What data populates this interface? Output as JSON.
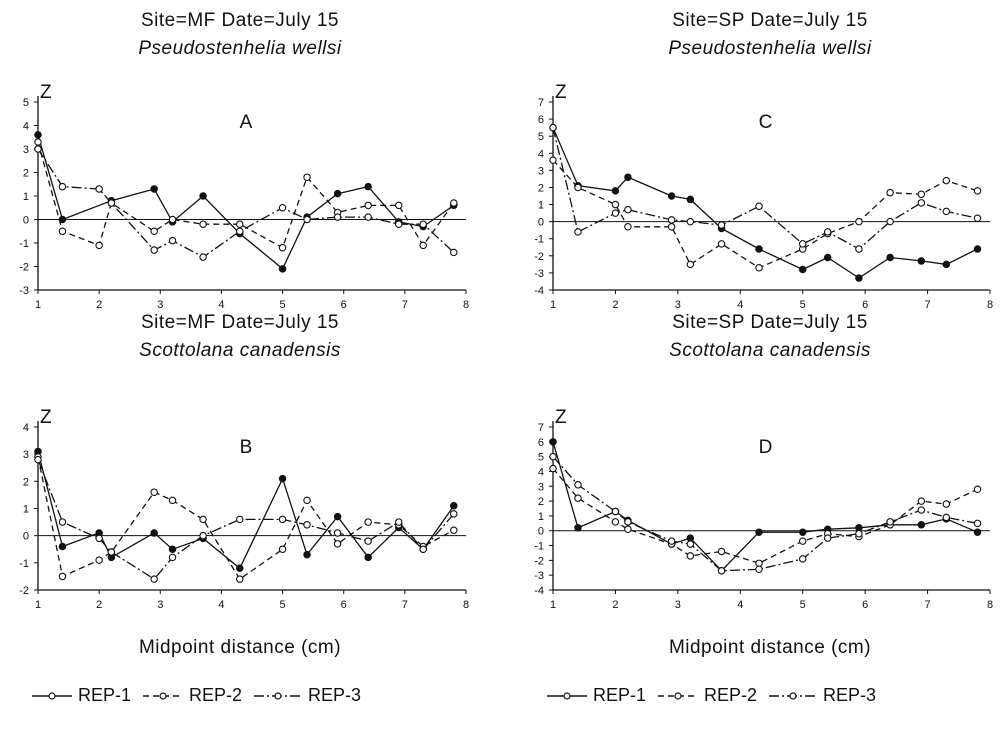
{
  "chart_data": [
    {
      "type": "line",
      "panel_label": "A",
      "title": "Site=MF   Date=July  15",
      "subtitle": "Pseudostenhelia  wellsi",
      "ylabel": "Z",
      "xlim": [
        1,
        8
      ],
      "ylim": [
        -3,
        5
      ],
      "x_ticks": [
        1,
        2,
        3,
        4,
        5,
        6,
        7,
        8
      ],
      "y_ticks": [
        -3,
        -2,
        -1,
        0,
        1,
        2,
        3,
        4,
        5
      ],
      "grid": false,
      "series": [
        {
          "name": "REP-1",
          "style": "solid",
          "x": [
            1.0,
            1.4,
            2.2,
            2.9,
            3.2,
            3.7,
            4.3,
            5.0,
            5.4,
            5.9,
            6.4,
            6.9,
            7.3,
            7.8
          ],
          "y": [
            3.6,
            0.0,
            0.8,
            1.3,
            -0.1,
            1.0,
            -0.6,
            -2.1,
            0.1,
            1.1,
            1.4,
            -0.1,
            -0.3,
            0.6
          ]
        },
        {
          "name": "REP-2",
          "style": "dashed",
          "x": [
            1.0,
            1.4,
            2.0,
            2.2,
            2.9,
            3.2,
            3.7,
            4.3,
            5.0,
            5.4,
            5.9,
            6.4,
            6.9,
            7.3,
            7.8
          ],
          "y": [
            3.3,
            -0.5,
            -1.1,
            0.7,
            -0.5,
            0.0,
            -0.2,
            -0.2,
            -1.2,
            1.8,
            0.3,
            0.6,
            0.6,
            -1.1,
            0.7
          ]
        },
        {
          "name": "REP-3",
          "style": "dashdot",
          "x": [
            1.0,
            1.4,
            2.0,
            2.2,
            2.9,
            3.2,
            3.7,
            4.3,
            5.0,
            5.4,
            5.9,
            6.4,
            6.9,
            7.3,
            7.8
          ],
          "y": [
            3.0,
            1.4,
            1.3,
            0.7,
            -1.3,
            -0.9,
            -1.6,
            -0.5,
            0.5,
            0.0,
            0.1,
            0.1,
            -0.2,
            -0.2,
            -1.4
          ]
        }
      ]
    },
    {
      "type": "line",
      "panel_label": "C",
      "title": "Site=SP   Date=July  15",
      "subtitle": "Pseudostenhelia  wellsi",
      "ylabel": "Z",
      "xlim": [
        1,
        8
      ],
      "ylim": [
        -4,
        7
      ],
      "x_ticks": [
        1,
        2,
        3,
        4,
        5,
        6,
        7,
        8
      ],
      "y_ticks": [
        -4,
        -3,
        -2,
        -1,
        0,
        1,
        2,
        3,
        4,
        5,
        6,
        7
      ],
      "grid": false,
      "series": [
        {
          "name": "REP-1",
          "style": "solid",
          "x": [
            1.0,
            1.4,
            2.0,
            2.2,
            2.9,
            3.2,
            3.7,
            4.3,
            5.0,
            5.4,
            5.9,
            6.4,
            6.9,
            7.3,
            7.8
          ],
          "y": [
            5.5,
            2.1,
            1.8,
            2.6,
            1.5,
            1.3,
            -0.4,
            -1.6,
            -2.8,
            -2.1,
            -3.3,
            -2.1,
            -2.3,
            -2.5,
            -1.6
          ]
        },
        {
          "name": "REP-2",
          "style": "dashed",
          "x": [
            1.0,
            1.4,
            2.0,
            2.2,
            2.9,
            3.2,
            3.7,
            4.3,
            5.0,
            5.4,
            5.9,
            6.4,
            6.9,
            7.3,
            7.8
          ],
          "y": [
            3.6,
            2.0,
            1.0,
            -0.3,
            -0.3,
            -2.5,
            -1.3,
            -2.7,
            -1.6,
            -0.7,
            0.0,
            1.7,
            1.6,
            2.4,
            1.8
          ]
        },
        {
          "name": "REP-3",
          "style": "dashdot",
          "x": [
            1.0,
            1.4,
            2.0,
            2.2,
            2.9,
            3.2,
            3.7,
            4.3,
            5.0,
            5.4,
            5.9,
            6.4,
            6.9,
            7.3,
            7.8
          ],
          "y": [
            5.5,
            -0.6,
            0.5,
            0.7,
            0.1,
            0.0,
            -0.2,
            0.9,
            -1.3,
            -0.6,
            -1.6,
            0.0,
            1.1,
            0.6,
            0.2
          ]
        }
      ]
    },
    {
      "type": "line",
      "panel_label": "B",
      "title": "Site=MF   Date=July  15",
      "subtitle": "Scottolana  canadensis",
      "ylabel": "Z",
      "xlim": [
        1,
        8
      ],
      "ylim": [
        -2,
        4
      ],
      "x_ticks": [
        1,
        2,
        3,
        4,
        5,
        6,
        7,
        8
      ],
      "y_ticks": [
        -2,
        -1,
        0,
        1,
        2,
        3,
        4
      ],
      "grid": false,
      "series": [
        {
          "name": "REP-1",
          "style": "solid",
          "x": [
            1.0,
            1.4,
            2.0,
            2.2,
            2.9,
            3.2,
            3.7,
            4.3,
            5.0,
            5.4,
            5.9,
            6.4,
            6.9,
            7.3,
            7.8
          ],
          "y": [
            3.1,
            -0.4,
            0.1,
            -0.8,
            0.1,
            -0.5,
            -0.1,
            -1.2,
            2.1,
            -0.7,
            0.7,
            -0.8,
            0.3,
            -0.5,
            1.1
          ]
        },
        {
          "name": "REP-2",
          "style": "dashed",
          "x": [
            1.0,
            1.4,
            2.0,
            2.2,
            2.9,
            3.2,
            3.7,
            4.3,
            5.0,
            5.4,
            5.9,
            6.4,
            6.9,
            7.3,
            7.8
          ],
          "y": [
            2.9,
            -1.5,
            -0.9,
            -0.6,
            1.6,
            1.3,
            0.6,
            -1.6,
            -0.5,
            1.3,
            -0.3,
            0.5,
            0.4,
            -0.4,
            0.2
          ]
        },
        {
          "name": "REP-3",
          "style": "dashdot",
          "x": [
            1.0,
            1.4,
            2.0,
            2.2,
            2.9,
            3.2,
            3.7,
            4.3,
            5.0,
            5.4,
            5.9,
            6.4,
            6.9,
            7.3,
            7.8
          ],
          "y": [
            2.8,
            0.5,
            -0.1,
            -0.6,
            -1.6,
            -0.8,
            0.0,
            0.6,
            0.6,
            0.4,
            0.1,
            -0.2,
            0.5,
            -0.5,
            0.8
          ]
        }
      ]
    },
    {
      "type": "line",
      "panel_label": "D",
      "title": "Site=SP   Date=July  15",
      "subtitle": "Scottolana  canadensis",
      "ylabel": "Z",
      "xlim": [
        1,
        8
      ],
      "ylim": [
        -4,
        7
      ],
      "x_ticks": [
        1,
        2,
        3,
        4,
        5,
        6,
        7,
        8
      ],
      "y_ticks": [
        -4,
        -3,
        -2,
        -1,
        0,
        1,
        2,
        3,
        4,
        5,
        6,
        7
      ],
      "grid": false,
      "series": [
        {
          "name": "REP-1",
          "style": "solid",
          "x": [
            1.0,
            1.4,
            2.0,
            2.2,
            2.9,
            3.2,
            3.7,
            4.3,
            5.0,
            5.4,
            5.9,
            6.4,
            6.9,
            7.3,
            7.8
          ],
          "y": [
            6.0,
            0.2,
            1.3,
            0.7,
            -0.9,
            -0.5,
            -2.7,
            -0.1,
            -0.1,
            0.1,
            0.2,
            0.4,
            0.4,
            0.8,
            -0.1
          ]
        },
        {
          "name": "REP-2",
          "style": "dashed",
          "x": [
            1.0,
            1.4,
            2.0,
            2.2,
            2.9,
            3.2,
            3.7,
            4.3,
            5.0,
            5.4,
            5.9,
            6.4,
            6.9,
            7.3,
            7.8
          ],
          "y": [
            4.2,
            2.2,
            0.6,
            0.1,
            -0.9,
            -1.7,
            -1.4,
            -2.2,
            -0.7,
            -0.2,
            -0.4,
            0.4,
            2.0,
            1.8,
            2.8
          ]
        },
        {
          "name": "REP-3",
          "style": "dashdot",
          "x": [
            1.0,
            1.4,
            2.0,
            2.2,
            2.9,
            3.2,
            3.7,
            4.3,
            5.0,
            5.4,
            5.9,
            6.4,
            6.9,
            7.3,
            7.8
          ],
          "y": [
            5.0,
            3.1,
            1.3,
            0.6,
            -0.7,
            -0.9,
            -2.7,
            -2.6,
            -1.9,
            -0.5,
            -0.2,
            0.6,
            1.4,
            0.9,
            0.5
          ]
        }
      ]
    }
  ],
  "xlabel": "Midpoint  distance  (cm)",
  "legend": [
    {
      "name": "REP-1",
      "style": "solid"
    },
    {
      "name": "REP-2",
      "style": "dashed"
    },
    {
      "name": "REP-3",
      "style": "dashdot"
    }
  ]
}
